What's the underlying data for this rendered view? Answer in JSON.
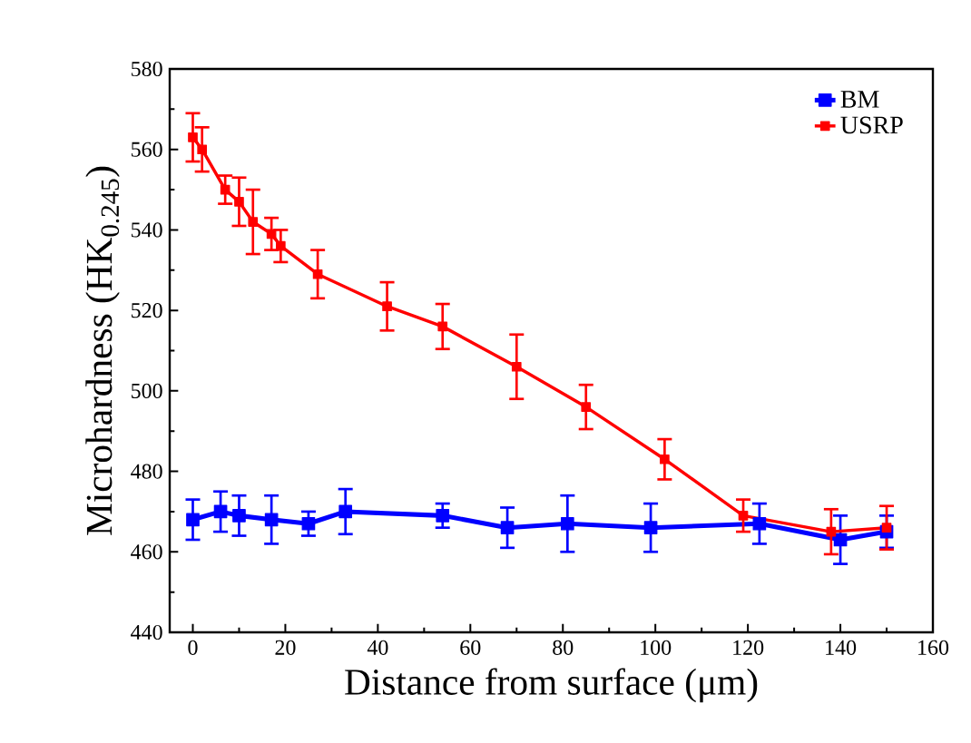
{
  "chart_data": {
    "type": "line",
    "xlabel": "Distance from surface (μm)",
    "ylabel": "Microhardness (HK$_{0.245}$)",
    "xlim": [
      -5,
      160
    ],
    "ylim": [
      440,
      580
    ],
    "xticks": [
      0,
      20,
      40,
      60,
      80,
      100,
      120,
      140,
      160
    ],
    "yticks": [
      440,
      460,
      480,
      500,
      520,
      540,
      560,
      580
    ],
    "legend": "top right",
    "marker": "square",
    "line_style": "solid",
    "grid": false,
    "series": [
      {
        "name": "BM",
        "color": "#0000ff",
        "x": [
          0,
          6,
          10,
          17,
          25,
          33,
          54,
          68,
          81,
          99,
          122.5,
          140,
          150
        ],
        "values": [
          468,
          470,
          469,
          468,
          467,
          470,
          469,
          466,
          467,
          466,
          467,
          463,
          465
        ],
        "errors": [
          5,
          5,
          5,
          6,
          3,
          5.6,
          3,
          5,
          7,
          6,
          5,
          6,
          4
        ]
      },
      {
        "name": "USRP",
        "color": "#ff0000",
        "x": [
          0,
          2,
          7,
          10,
          13,
          17,
          19,
          27,
          42,
          54,
          70,
          85,
          102,
          119,
          138,
          150
        ],
        "values": [
          563,
          560,
          550,
          547,
          542,
          539,
          536,
          529,
          521,
          516,
          506,
          496,
          483,
          469,
          465,
          466
        ],
        "errors": [
          6,
          5.5,
          3.5,
          6,
          8,
          4,
          4,
          6,
          6,
          5.6,
          8,
          5.5,
          5,
          4,
          5.6,
          5.4
        ]
      }
    ]
  }
}
